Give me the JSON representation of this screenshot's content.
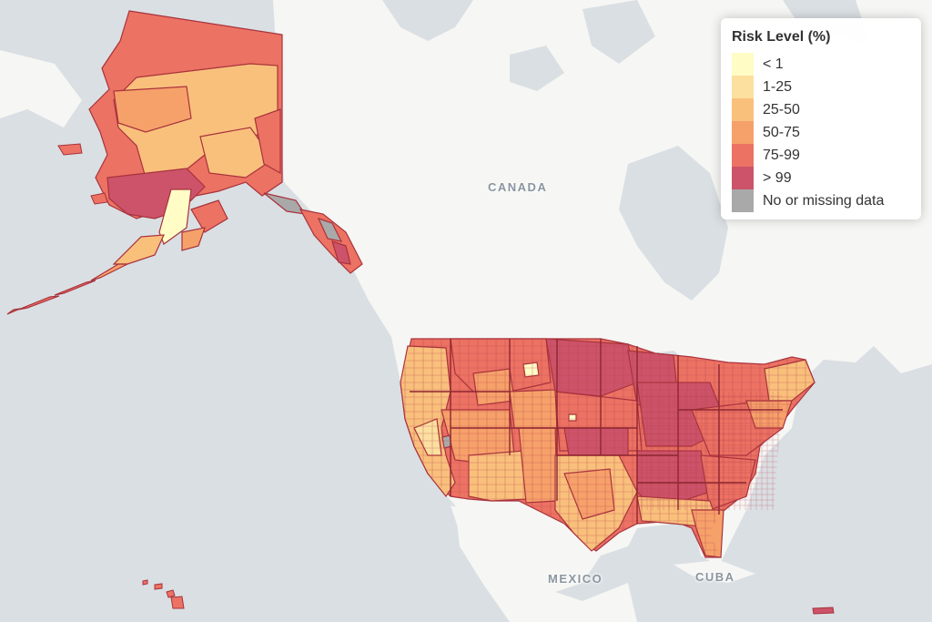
{
  "map": {
    "country_labels": {
      "canada": "CANADA",
      "mexico": "MEXICO",
      "cuba": "CUBA"
    },
    "colors": {
      "ocean": "#dadfe3",
      "land": "#f6f6f4",
      "border": "#a8323c"
    }
  },
  "legend": {
    "title": "Risk Level (%)",
    "items": [
      {
        "label": "< 1",
        "color": "#fffcc6"
      },
      {
        "label": "1-25",
        "color": "#fbe0a0"
      },
      {
        "label": "25-50",
        "color": "#f9c07c"
      },
      {
        "label": "50-75",
        "color": "#f6a16a"
      },
      {
        "label": "75-99",
        "color": "#ec7263"
      },
      {
        "label": "> 99",
        "color": "#cc5369"
      },
      {
        "label": "No or missing data",
        "color": "#a9a9a9"
      }
    ]
  }
}
